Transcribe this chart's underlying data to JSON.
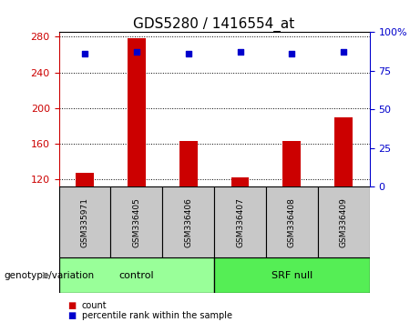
{
  "title": "GDS5280 / 1416554_at",
  "categories": [
    "GSM335971",
    "GSM336405",
    "GSM336406",
    "GSM336407",
    "GSM336408",
    "GSM336409"
  ],
  "counts": [
    128,
    278,
    163,
    122,
    163,
    190
  ],
  "percentiles": [
    86,
    87,
    86,
    87,
    86,
    87
  ],
  "ymin": 112,
  "ymax": 285,
  "yticks": [
    120,
    160,
    200,
    240,
    280
  ],
  "y2min": 0,
  "y2max": 100,
  "y2ticks": [
    0,
    25,
    50,
    75,
    100
  ],
  "bar_color": "#cc0000",
  "dot_color": "#0000cc",
  "bar_baseline": 112,
  "groups": [
    {
      "label": "control",
      "start": 0,
      "end": 3,
      "color": "#99ff99"
    },
    {
      "label": "SRF null",
      "start": 3,
      "end": 6,
      "color": "#55ee55"
    }
  ],
  "group_label": "genotype/variation",
  "legend_count_label": "count",
  "legend_percentile_label": "percentile rank within the sample",
  "left_tick_color": "#cc0000",
  "right_tick_color": "#0000cc",
  "tick_label_bg": "#c8c8c8",
  "title_fontsize": 11,
  "tick_fontsize": 8,
  "bar_width": 0.35
}
